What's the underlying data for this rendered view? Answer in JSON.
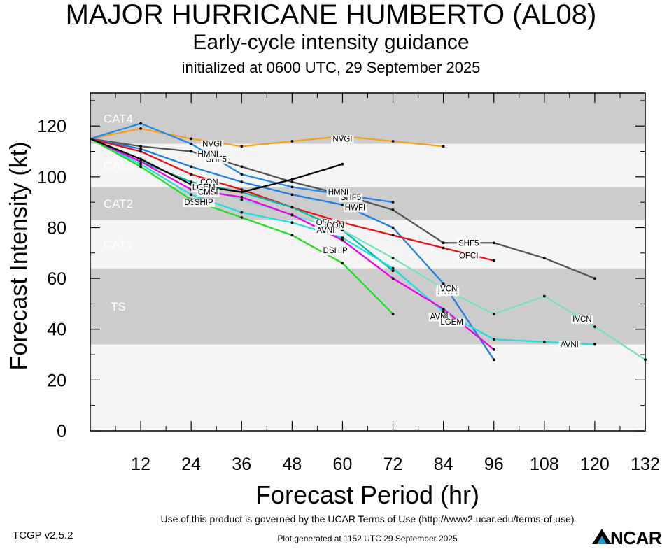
{
  "titles": {
    "line1": "MAJOR HURRICANE HUMBERTO (AL08)",
    "line2": "Early-cycle intensity guidance",
    "line3": "initialized at 0600 UTC, 29 September 2025"
  },
  "footer": {
    "terms": "Use of this product is governed by the UCAR Terms of Use (http://www2.ucar.edu/terms-of-use)",
    "version": "TCGP v2.5.2",
    "generated": "Plot generated at 1152 UTC   29 September 2025",
    "logo_text": "NCAR"
  },
  "chart_data": {
    "type": "line",
    "xlabel": "Forecast Period (hr)",
    "ylabel": "Forecast Intensity (kt)",
    "xlim": [
      0,
      132
    ],
    "ylim": [
      0,
      133
    ],
    "xticks": [
      12,
      24,
      36,
      48,
      60,
      72,
      84,
      96,
      108,
      120,
      132
    ],
    "yticks": [
      0,
      20,
      40,
      60,
      80,
      100,
      120
    ],
    "category_bands": [
      {
        "name": "TS",
        "min": 34,
        "max": 64,
        "shade": "dark"
      },
      {
        "name": "CAT1",
        "min": 64,
        "max": 83,
        "shade": "light"
      },
      {
        "name": "CAT2",
        "min": 83,
        "max": 96,
        "shade": "dark"
      },
      {
        "name": "CAT3",
        "min": 96,
        "max": 113,
        "shade": "light"
      },
      {
        "name": "CAT4",
        "min": 113,
        "max": 133,
        "shade": "dark"
      },
      {
        "name": "",
        "min": 0,
        "max": 34,
        "shade": "light"
      }
    ],
    "colors": {
      "band_dark": "#cccccc",
      "band_light": "#f5f5f5",
      "band_label": "#ffffff"
    },
    "series": [
      {
        "name": "NVGI",
        "color": "#f5a020",
        "x": [
          0,
          12,
          24,
          36,
          48,
          60,
          72,
          84
        ],
        "y": [
          115,
          119,
          115,
          112,
          114,
          116,
          114,
          112
        ],
        "labels": [
          {
            "x": 29,
            "y": 113
          },
          {
            "x": 60,
            "y": 115
          }
        ]
      },
      {
        "name": "SHF5",
        "color": "#555555",
        "x": [
          0,
          12,
          24,
          36,
          48,
          60,
          72,
          84,
          96,
          108,
          120
        ],
        "y": [
          115,
          112,
          110,
          104,
          98,
          93,
          87,
          74,
          74,
          68,
          60
        ],
        "labels": [
          {
            "x": 30,
            "y": 107
          },
          {
            "x": 62,
            "y": 92
          },
          {
            "x": 90,
            "y": 74
          }
        ]
      },
      {
        "name": "HMNI",
        "color": "#2288ee",
        "x": [
          0,
          12,
          24,
          36,
          48,
          60,
          72
        ],
        "y": [
          115,
          121,
          113,
          101,
          96,
          93,
          90
        ],
        "labels": [
          {
            "x": 28,
            "y": 109
          },
          {
            "x": 59,
            "y": 94
          }
        ]
      },
      {
        "name": "HWFI",
        "color": "#1f7fe0",
        "x": [
          0,
          12,
          24,
          36,
          48,
          60,
          72,
          84,
          96
        ],
        "y": [
          115,
          111,
          104,
          98,
          93,
          89,
          80,
          58,
          28
        ],
        "labels": [
          {
            "x": 63,
            "y": 88
          },
          {
            "x": 85,
            "y": 55
          }
        ]
      },
      {
        "name": "OFCI",
        "color": "#ee1111",
        "x": [
          0,
          12,
          24,
          36,
          48,
          60,
          72,
          84,
          96
        ],
        "y": [
          115,
          110,
          101,
          95,
          88,
          82,
          77,
          72,
          67
        ],
        "labels": [
          {
            "x": 56,
            "y": 82
          },
          {
            "x": 90,
            "y": 69
          }
        ]
      },
      {
        "name": "ICON",
        "color": "#00bbaa",
        "x": [
          0,
          12,
          24,
          36,
          48,
          60,
          72
        ],
        "y": [
          115,
          106,
          98,
          94,
          88,
          79,
          63
        ],
        "labels": [
          {
            "x": 28,
            "y": 98
          },
          {
            "x": 58,
            "y": 81
          }
        ]
      },
      {
        "name": "IVCN",
        "color": "#77e0c0",
        "x": [
          0,
          12,
          24,
          36,
          48,
          60,
          72,
          84,
          96,
          108,
          120,
          132
        ],
        "y": [
          115,
          107,
          97,
          91,
          85,
          79,
          68,
          56,
          46,
          53,
          41,
          28
        ],
        "labels": [
          {
            "x": 85,
            "y": 56
          },
          {
            "x": 117,
            "y": 44
          }
        ]
      },
      {
        "name": "AVNI",
        "color": "#22dddd",
        "x": [
          0,
          12,
          24,
          36,
          48,
          60,
          72,
          84,
          96,
          108,
          120
        ],
        "y": [
          115,
          105,
          93,
          86,
          82,
          76,
          64,
          47,
          36,
          35,
          34
        ],
        "labels": [
          {
            "x": 56,
            "y": 79
          },
          {
            "x": 83,
            "y": 45
          },
          {
            "x": 114,
            "y": 34
          }
        ]
      },
      {
        "name": "LGEM",
        "color": "#ee00ee",
        "x": [
          0,
          12,
          24,
          36,
          48,
          60,
          72,
          84,
          96
        ],
        "y": [
          115,
          106,
          95,
          92,
          85,
          75,
          60,
          48,
          32
        ],
        "labels": [
          {
            "x": 27,
            "y": 96
          },
          {
            "x": 86,
            "y": 43
          }
        ]
      },
      {
        "name": "DSHP",
        "color": "#22dd22",
        "x": [
          0,
          12,
          24,
          36,
          48,
          60,
          72
        ],
        "y": [
          115,
          104,
          91,
          84,
          77,
          66,
          46
        ],
        "labels": [
          {
            "x": 25,
            "y": 90
          },
          {
            "x": 58,
            "y": 71
          }
        ]
      },
      {
        "name": "SHIP",
        "color": "#22dd22",
        "x": [],
        "y": [],
        "labels": [
          {
            "x": 27,
            "y": 90
          },
          {
            "x": 59,
            "y": 71
          }
        ]
      },
      {
        "name": "",
        "color": "#000000",
        "x": [
          0,
          12,
          24,
          36,
          48,
          60
        ],
        "y": [
          115,
          107,
          97,
          94,
          99,
          105
        ],
        "labels": []
      },
      {
        "name": "CMSI",
        "color": "#000000",
        "x": [],
        "y": [],
        "labels": [
          {
            "x": 28,
            "y": 94
          }
        ]
      }
    ]
  }
}
